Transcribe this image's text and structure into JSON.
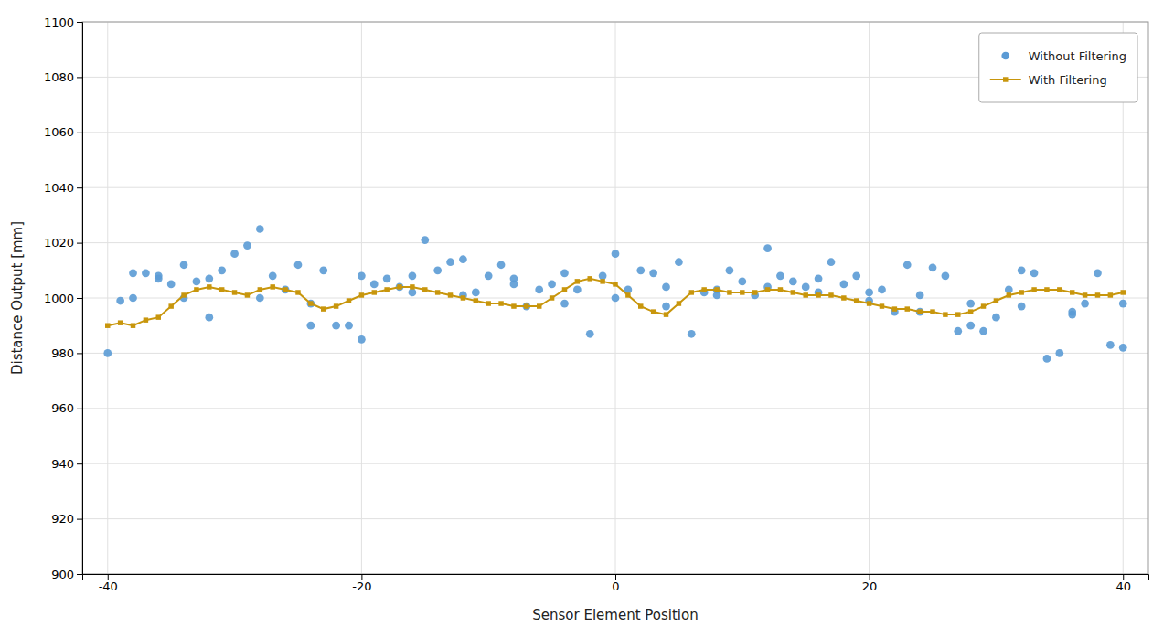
{
  "chart_data": {
    "type": "scatter",
    "xlabel": "Sensor Element Position",
    "ylabel": "Distance Output [mm]",
    "xlim": [
      -42,
      42
    ],
    "ylim": [
      900,
      1100
    ],
    "xticks": [
      -40,
      -20,
      0,
      20,
      40
    ],
    "yticks": [
      900,
      920,
      940,
      960,
      980,
      1000,
      1020,
      1040,
      1060,
      1080,
      1100
    ],
    "grid": true,
    "legend": "upper right",
    "series": [
      {
        "name": "Without Filtering",
        "type": "scatter",
        "marker": "circle",
        "color": "#5B9BD5",
        "x": [
          -40,
          -39,
          -38,
          -37,
          -36,
          -35,
          -34,
          -33,
          -32,
          -31,
          -30,
          -29,
          -28,
          -27,
          -26,
          -25,
          -24,
          -23,
          -22,
          -21,
          -20,
          -19,
          -18,
          -17,
          -16,
          -15,
          -14,
          -13,
          -12,
          -11,
          -10,
          -9,
          -8,
          -7,
          -6,
          -5,
          -4,
          -3,
          -2,
          -1,
          0,
          1,
          2,
          3,
          4,
          5,
          6,
          7,
          8,
          9,
          10,
          11,
          12,
          13,
          14,
          15,
          16,
          17,
          18,
          19,
          20,
          21,
          22,
          23,
          24,
          25,
          26,
          27,
          28,
          29,
          30,
          31,
          32,
          33,
          34,
          35,
          36,
          37,
          38,
          39,
          40
        ],
        "values": [
          980,
          999,
          1000,
          1009,
          1008,
          1005,
          1000,
          1006,
          1007,
          1010,
          1016,
          1019,
          1025,
          1008,
          1003,
          1012,
          990,
          1010,
          990,
          990,
          1008,
          1005,
          1007,
          1004,
          1008,
          1021,
          1010,
          1013,
          1014,
          1002,
          1008,
          1012,
          1007,
          997,
          1003,
          1005,
          1009,
          1003,
          987,
          1008,
          1016,
          1003,
          1010,
          1009,
          1004,
          1013,
          987,
          1002,
          1003,
          1010,
          1006,
          1001,
          1018,
          1008,
          1006,
          1004,
          1007,
          1013,
          1005,
          1008,
          1002,
          1003,
          995,
          1012,
          995,
          1011,
          1008,
          988,
          990,
          988,
          993,
          1003,
          1010,
          1009,
          978,
          980,
          994,
          998,
          1009,
          983,
          982
        ]
      },
      {
        "type": "scatter",
        "marker": "circle",
        "color": "#5B9BD5",
        "x": [
          -38,
          -36,
          -34,
          -32,
          -28,
          -24,
          -20,
          -16,
          -12,
          -8,
          -4,
          0,
          4,
          8,
          12,
          16,
          20,
          24,
          28,
          32,
          36,
          40
        ],
        "values": [
          1009,
          1007,
          1012,
          993,
          1000,
          998,
          985,
          1002,
          1001,
          1005,
          998,
          1000,
          997,
          1001,
          1004,
          1002,
          999,
          1001,
          998,
          997,
          995,
          998
        ]
      },
      {
        "name": "With Filtering",
        "type": "line",
        "marker": "square",
        "line_style": "solid",
        "color": "#C8960C",
        "x": [
          -40,
          -39,
          -38,
          -37,
          -36,
          -35,
          -34,
          -33,
          -32,
          -31,
          -30,
          -29,
          -28,
          -27,
          -26,
          -25,
          -24,
          -23,
          -22,
          -21,
          -20,
          -19,
          -18,
          -17,
          -16,
          -15,
          -14,
          -13,
          -12,
          -11,
          -10,
          -9,
          -8,
          -7,
          -6,
          -5,
          -4,
          -3,
          -2,
          -1,
          0,
          1,
          2,
          3,
          4,
          5,
          6,
          7,
          8,
          9,
          10,
          11,
          12,
          13,
          14,
          15,
          16,
          17,
          18,
          19,
          20,
          21,
          22,
          23,
          24,
          25,
          26,
          27,
          28,
          29,
          30,
          31,
          32,
          33,
          34,
          35,
          36,
          37,
          38,
          39,
          40
        ],
        "values": [
          990,
          991,
          990,
          992,
          993,
          997,
          1001,
          1003,
          1004,
          1003,
          1002,
          1001,
          1003,
          1004,
          1003,
          1002,
          998,
          996,
          997,
          999,
          1001,
          1002,
          1003,
          1004,
          1004,
          1003,
          1002,
          1001,
          1000,
          999,
          998,
          998,
          997,
          997,
          997,
          1000,
          1003,
          1006,
          1007,
          1006,
          1005,
          1001,
          997,
          995,
          994,
          998,
          1002,
          1003,
          1003,
          1002,
          1002,
          1002,
          1003,
          1003,
          1002,
          1001,
          1001,
          1001,
          1000,
          999,
          998,
          997,
          996,
          996,
          995,
          995,
          994,
          994,
          995,
          997,
          999,
          1001,
          1002,
          1003,
          1003,
          1003,
          1002,
          1001,
          1001,
          1001,
          1002
        ]
      }
    ]
  }
}
